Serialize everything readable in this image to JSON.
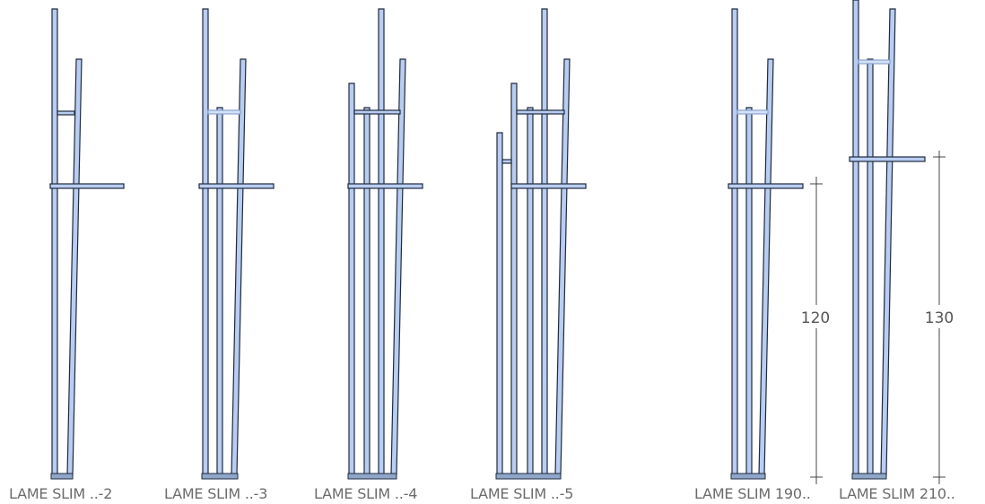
{
  "models": [
    {
      "label": "LAME SLIM ..-2",
      "bars": 2
    },
    {
      "label": "LAME SLIM ..-3",
      "bars": 3
    },
    {
      "label": "LAME SLIM ..-4",
      "bars": 4
    },
    {
      "label": "LAME SLIM ..-5",
      "bars": 5
    },
    {
      "label": "LAME SLIM 190..",
      "bars": 3,
      "dimension": "120"
    },
    {
      "label": "LAME SLIM 210..",
      "bars": 3,
      "dimension": "130"
    }
  ],
  "colors": {
    "bar_fill": "#b9cdf1",
    "outline": "#1e2a3e",
    "label_text": "#6b6b6b"
  }
}
